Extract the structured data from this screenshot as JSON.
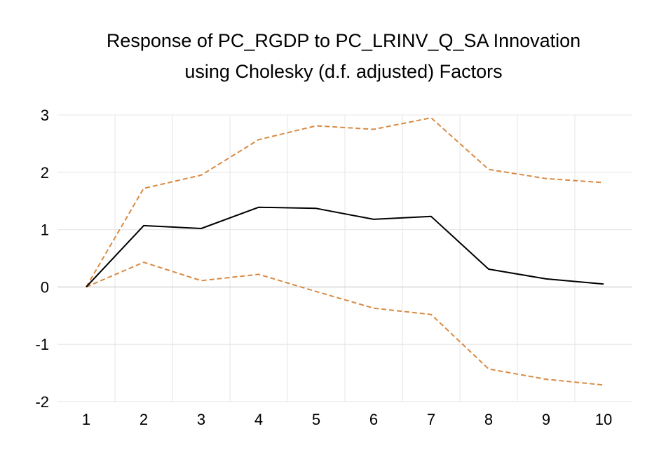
{
  "chart_data": {
    "type": "line",
    "title": "Response of PC_RGDP to PC_LRINV_Q_SA Innovation",
    "subtitle": "using Cholesky (d.f. adjusted) Factors",
    "xlabel": "",
    "ylabel": "",
    "x": [
      1,
      2,
      3,
      4,
      5,
      6,
      7,
      8,
      9,
      10
    ],
    "ylim": [
      -2,
      3
    ],
    "yticks": [
      -2,
      -1,
      0,
      1,
      2,
      3
    ],
    "grid": true,
    "legend": "none",
    "series": [
      {
        "role": "response",
        "color": "#000000",
        "style": "solid",
        "values": [
          0.0,
          1.07,
          1.02,
          1.39,
          1.37,
          1.18,
          1.23,
          0.31,
          0.14,
          0.05
        ]
      },
      {
        "role": "upper-band",
        "color": "#D98A43",
        "style": "dashed",
        "values": [
          0.0,
          1.72,
          1.95,
          2.57,
          2.81,
          2.75,
          2.95,
          2.05,
          1.89,
          1.82
        ]
      },
      {
        "role": "lower-band",
        "color": "#D98A43",
        "style": "dashed",
        "values": [
          0.0,
          0.43,
          0.11,
          0.22,
          -0.08,
          -0.37,
          -0.48,
          -1.43,
          -1.61,
          -1.71
        ]
      }
    ]
  }
}
